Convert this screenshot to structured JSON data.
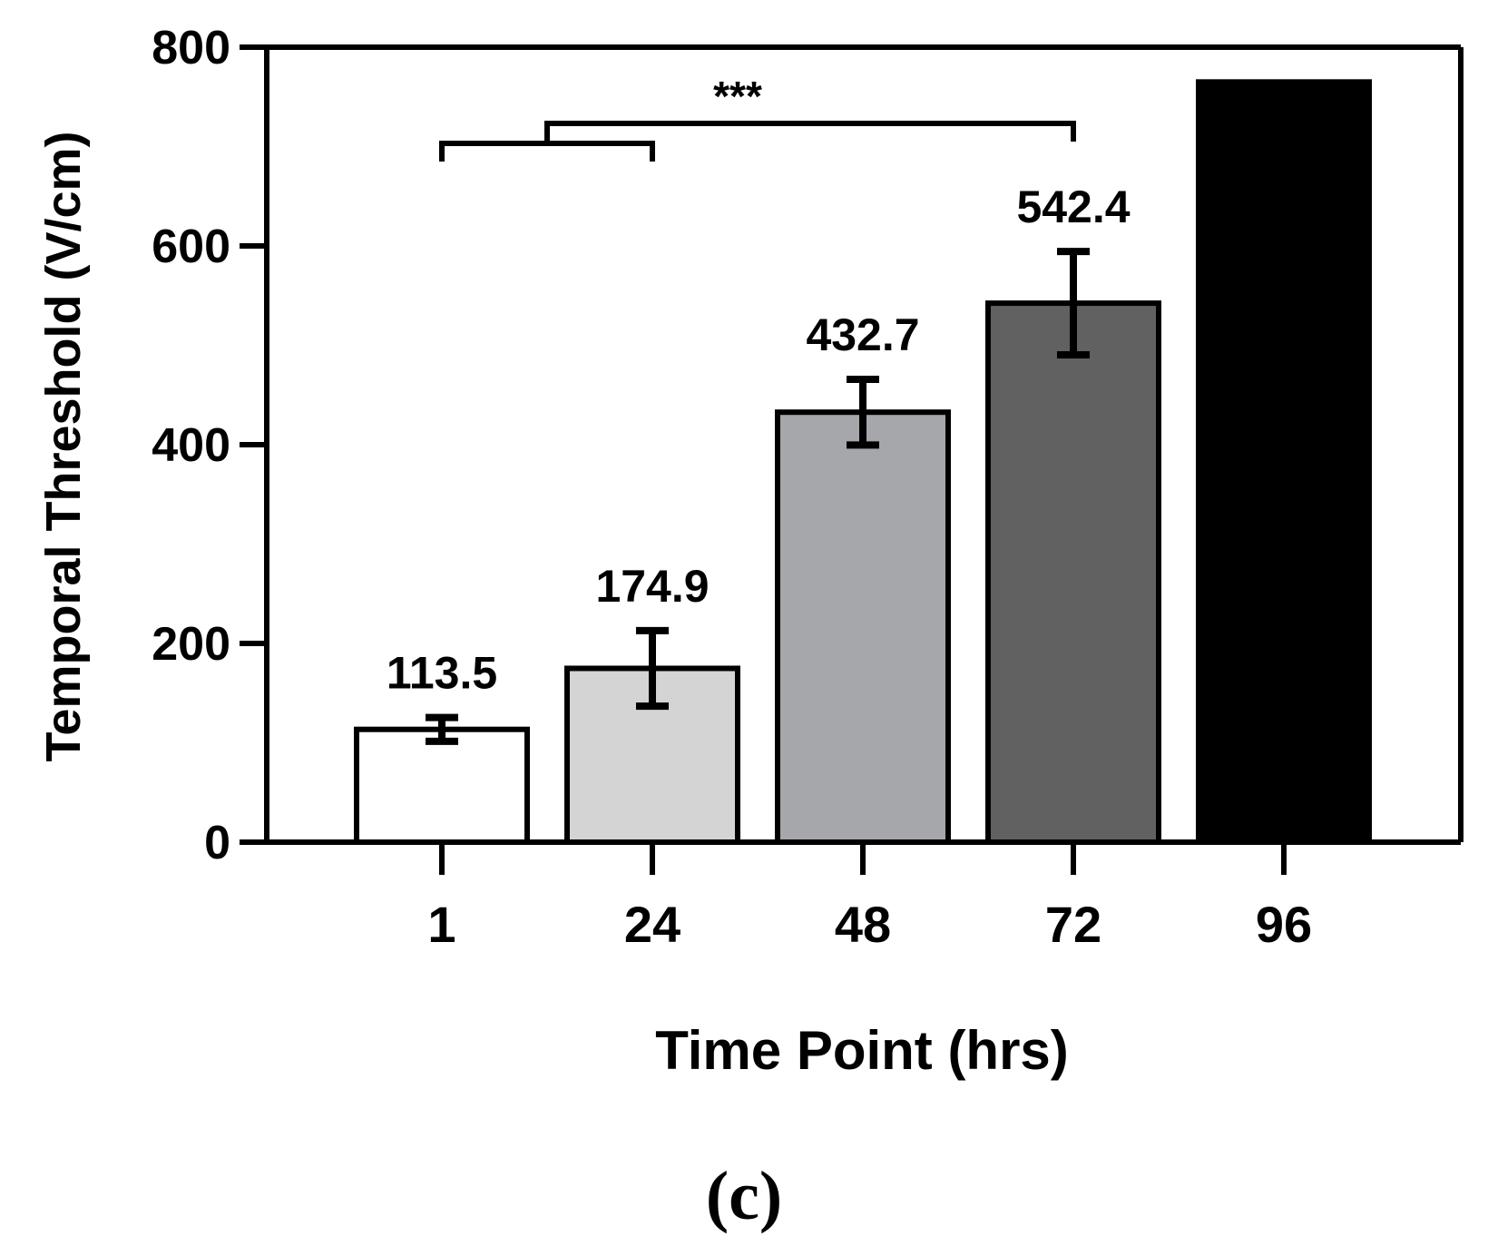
{
  "chart_data": {
    "type": "bar",
    "categories": [
      "1",
      "24",
      "48",
      "72",
      "96"
    ],
    "values": [
      113.5,
      174.9,
      432.7,
      542.4,
      765
    ],
    "error": [
      12,
      38,
      33,
      52,
      null
    ],
    "value_labels": [
      "113.5",
      "174.9",
      "432.7",
      "542.4",
      "∞"
    ],
    "bar_colors": [
      "#ffffff",
      "#d4d4d4",
      "#a6a7ab",
      "#616161",
      "#000000"
    ],
    "xlabel": "Time Point (hrs)",
    "ylabel": "Temporal Threshold (V/cm)",
    "ylim": [
      0,
      800
    ],
    "yticks": [
      0,
      200,
      400,
      600,
      800
    ],
    "grid": false,
    "significance": {
      "label": "***",
      "group_from": [
        "1",
        "24"
      ],
      "to": "72"
    }
  },
  "panel_label": "(c)"
}
